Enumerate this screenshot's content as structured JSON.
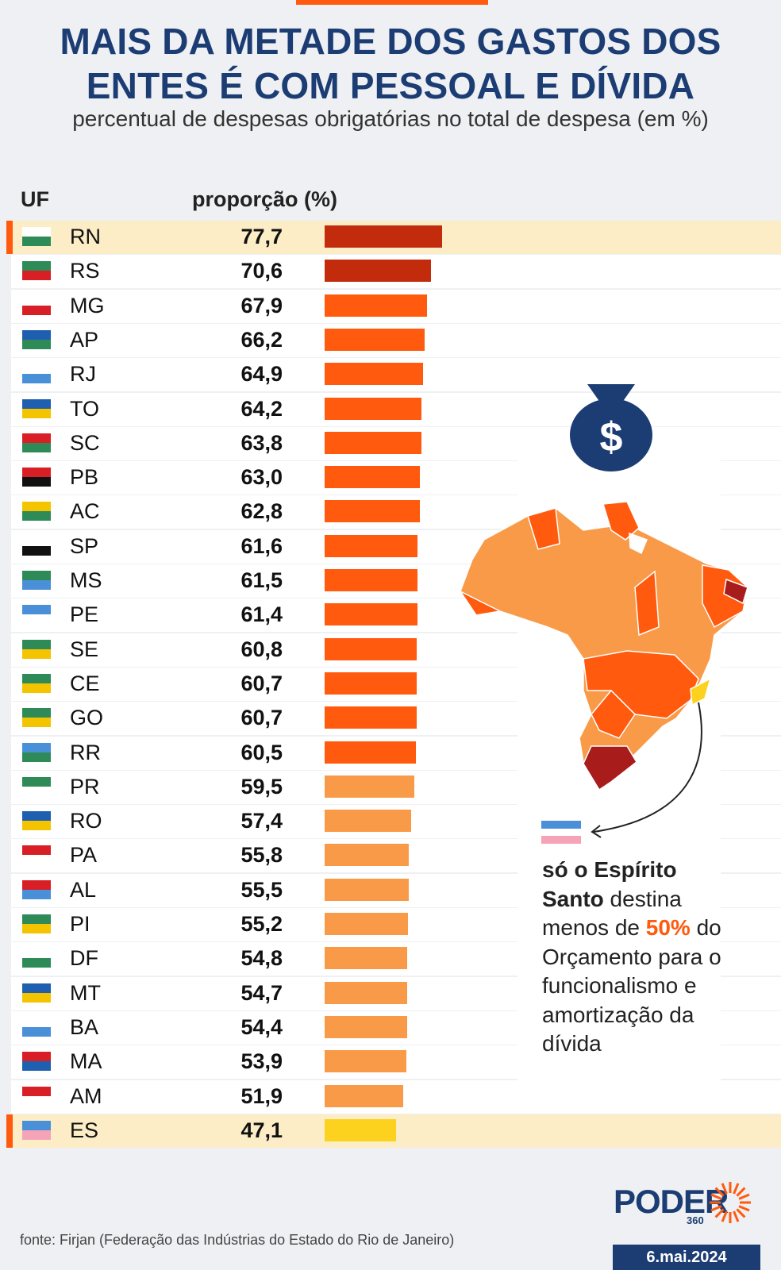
{
  "title_line1": "MAIS DA METADE DOS GASTOS DOS",
  "title_line2": "ENTES É COM PESSOAL E DÍVIDA",
  "subtitle": "percentual de despesas obrigatórias no total de despesa (em %)",
  "headers": {
    "uf": "UF",
    "value": "proporção (%)"
  },
  "colors": {
    "dark_red": "#c22b0c",
    "orange": "#ff5a0e",
    "light_orange": "#f99a48",
    "yellow": "#fdd21e",
    "navy": "#1c3d73",
    "highlight_row": "#fcedc6"
  },
  "chart_data": {
    "type": "bar",
    "orientation": "horizontal",
    "categories": [
      "RN",
      "RS",
      "MG",
      "AP",
      "RJ",
      "TO",
      "SC",
      "PB",
      "AC",
      "SP",
      "MS",
      "PE",
      "SE",
      "CE",
      "GO",
      "RR",
      "PR",
      "RO",
      "PA",
      "AL",
      "PI",
      "DF",
      "MT",
      "BA",
      "MA",
      "AM",
      "ES"
    ],
    "labels": [
      "77,7",
      "70,6",
      "67,9",
      "66,2",
      "64,9",
      "64,2",
      "63,8",
      "63,0",
      "62,8",
      "61,6",
      "61,5",
      "61,4",
      "60,8",
      "60,7",
      "60,7",
      "60,5",
      "59,5",
      "57,4",
      "55,8",
      "55,5",
      "55,2",
      "54,8",
      "54,7",
      "54,4",
      "53,9",
      "51,9",
      "47,1"
    ],
    "values": [
      77.7,
      70.6,
      67.9,
      66.2,
      64.9,
      64.2,
      63.8,
      63.0,
      62.8,
      61.6,
      61.5,
      61.4,
      60.8,
      60.7,
      60.7,
      60.5,
      59.5,
      57.4,
      55.8,
      55.5,
      55.2,
      54.8,
      54.7,
      54.4,
      53.9,
      51.9,
      47.1
    ],
    "highlighted": [
      "RN",
      "ES"
    ],
    "xlim": [
      0,
      100
    ]
  },
  "callout": {
    "bold": "só o Espírito Santo",
    "mid": " destina menos de ",
    "pct": "50%",
    "rest": " do Orçamento para o funcionalismo e amortização da dívida",
    "bag_symbol": "$"
  },
  "source": "fonte: Firjan (Federação das Indústrias do Estado do Rio de Janeiro)",
  "logo": {
    "word": "PODER",
    "number": "360"
  },
  "date": "6.mai.2024"
}
